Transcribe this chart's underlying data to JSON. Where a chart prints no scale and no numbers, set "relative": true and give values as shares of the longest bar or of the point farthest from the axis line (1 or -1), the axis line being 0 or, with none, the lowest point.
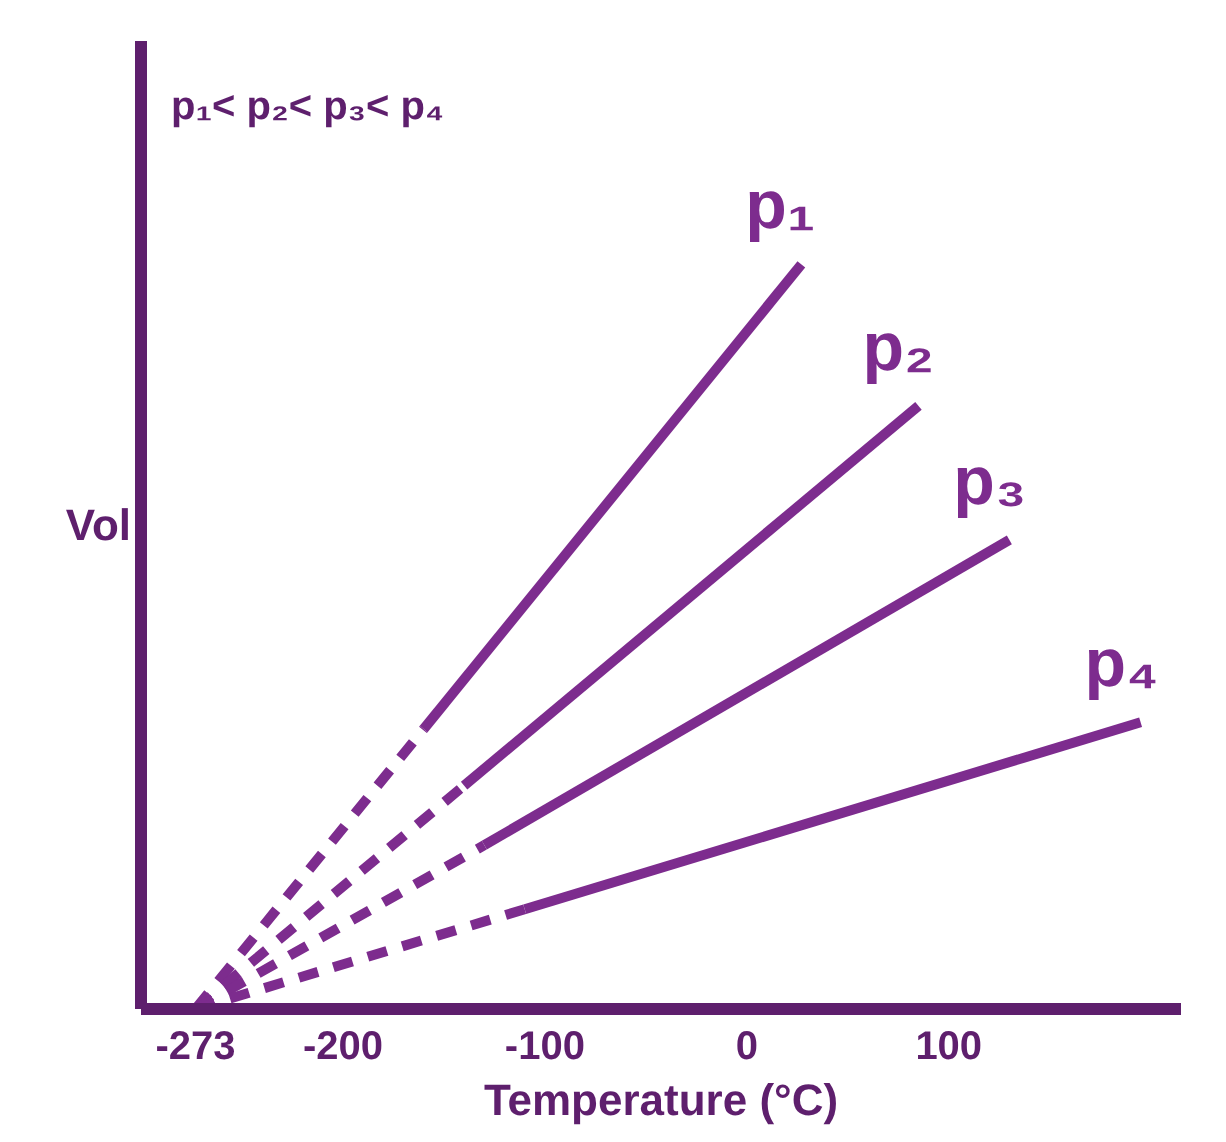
{
  "chart_data": {
    "type": "line",
    "relative": true,
    "xlabel": "Temperature (°C)",
    "ylabel": "Vol",
    "xlim": [
      -300,
      215
    ],
    "xticks": [
      -273,
      -200,
      -100,
      0,
      100
    ],
    "tick_labels": "x",
    "grid": false,
    "annotations": [
      "p₁< p₂< p₃< p₄"
    ],
    "series": [
      {
        "x": [
          -273,
          -160
        ],
        "values": [
          0,
          0.376
        ],
        "color": "#7d2c8e",
        "line_style": "dashed"
      },
      {
        "x": [
          -273,
          -140
        ],
        "values": [
          0,
          0.3
        ],
        "color": "#7d2c8e",
        "line_style": "dashed"
      },
      {
        "x": [
          -273,
          -130
        ],
        "values": [
          0,
          0.22
        ],
        "color": "#7d2c8e",
        "line_style": "dashed"
      },
      {
        "x": [
          -273,
          -110
        ],
        "values": [
          0,
          0.134
        ],
        "color": "#7d2c8e",
        "line_style": "dashed"
      },
      {
        "name": "p₁",
        "x": [
          -160,
          27
        ],
        "values": [
          0.376,
          1
        ],
        "color": "#7d2c8e",
        "line_style": "solid"
      },
      {
        "name": "p₂",
        "x": [
          -140,
          85
        ],
        "values": [
          0.3,
          0.81
        ],
        "color": "#7d2c8e",
        "line_style": "solid"
      },
      {
        "name": "p₃",
        "x": [
          -130,
          130
        ],
        "values": [
          0.22,
          0.63
        ],
        "color": "#7d2c8e",
        "line_style": "solid"
      },
      {
        "name": "p₄",
        "x": [
          -110,
          195
        ],
        "values": [
          0.134,
          0.385
        ],
        "color": "#7d2c8e",
        "line_style": "solid"
      }
    ]
  }
}
